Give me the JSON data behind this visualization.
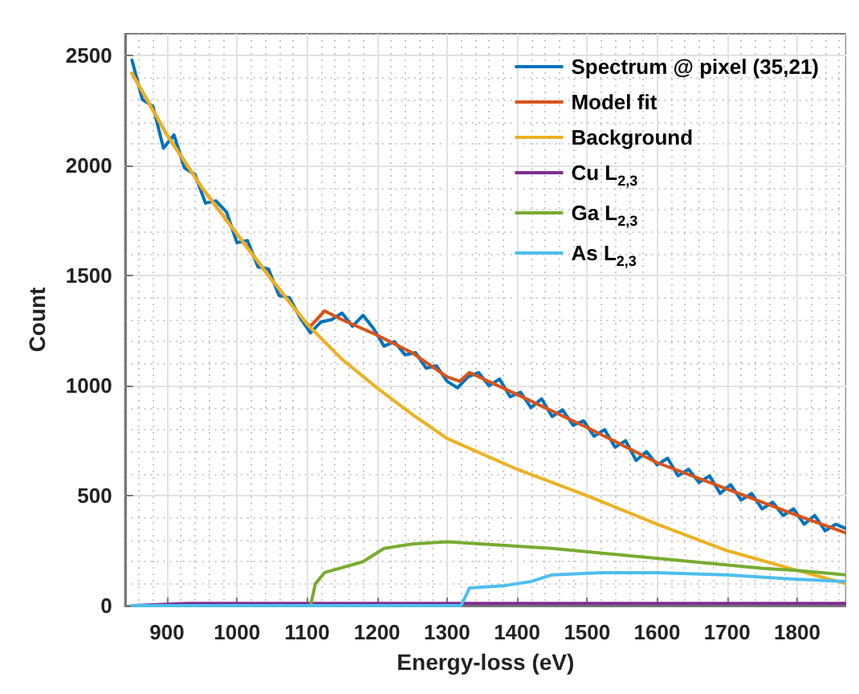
{
  "chart_data": {
    "type": "line",
    "xlabel": "Energy-loss (eV)",
    "ylabel": "Count",
    "xlim": [
      840,
      1870
    ],
    "xticks": [
      900,
      1000,
      1100,
      1200,
      1300,
      1400,
      1500,
      1600,
      1700,
      1800
    ],
    "ylim": [
      0,
      2600
    ],
    "yticks": [
      0,
      500,
      1000,
      1500,
      2000,
      2500
    ],
    "grid": true,
    "legend": "top right",
    "marker": "none",
    "line_style": "solid",
    "series": [
      {
        "name": "Spectrum @ pixel (35,21)",
        "color": "#0072bd",
        "x": [
          850,
          865,
          880,
          895,
          910,
          925,
          940,
          955,
          970,
          985,
          1000,
          1015,
          1030,
          1045,
          1060,
          1075,
          1090,
          1105,
          1120,
          1135,
          1150,
          1165,
          1180,
          1195,
          1210,
          1225,
          1240,
          1255,
          1270,
          1285,
          1300,
          1315,
          1330,
          1345,
          1360,
          1375,
          1390,
          1405,
          1420,
          1435,
          1450,
          1465,
          1480,
          1495,
          1510,
          1525,
          1540,
          1555,
          1570,
          1585,
          1600,
          1615,
          1630,
          1645,
          1660,
          1675,
          1690,
          1705,
          1720,
          1735,
          1750,
          1765,
          1780,
          1795,
          1810,
          1825,
          1840,
          1855,
          1870
        ],
        "values": [
          2480,
          2300,
          2270,
          2080,
          2140,
          1990,
          1960,
          1830,
          1840,
          1790,
          1650,
          1660,
          1540,
          1530,
          1410,
          1400,
          1310,
          1240,
          1290,
          1300,
          1330,
          1270,
          1320,
          1260,
          1180,
          1200,
          1140,
          1150,
          1080,
          1090,
          1020,
          990,
          1040,
          1060,
          1000,
          1030,
          950,
          970,
          900,
          940,
          860,
          890,
          820,
          840,
          770,
          800,
          720,
          750,
          660,
          700,
          640,
          670,
          590,
          620,
          560,
          590,
          510,
          550,
          480,
          510,
          440,
          470,
          410,
          440,
          370,
          410,
          340,
          370,
          350
        ]
      },
      {
        "name": "Model fit",
        "color": "#d95319",
        "x": [
          850,
          900,
          950,
          1000,
          1050,
          1100,
          1105,
          1125,
          1150,
          1200,
          1250,
          1300,
          1318,
          1332,
          1400,
          1500,
          1600,
          1700,
          1800,
          1870
        ],
        "values": [
          2420,
          2140,
          1900,
          1690,
          1480,
          1280,
          1270,
          1340,
          1300,
          1230,
          1150,
          1040,
          1020,
          1060,
          960,
          810,
          650,
          530,
          410,
          330
        ]
      },
      {
        "name": "Background",
        "color": "#edb120",
        "x": [
          850,
          900,
          950,
          1000,
          1050,
          1100,
          1150,
          1200,
          1250,
          1300,
          1400,
          1500,
          1600,
          1700,
          1800,
          1870
        ],
        "values": [
          2420,
          2140,
          1900,
          1690,
          1480,
          1280,
          1120,
          990,
          870,
          760,
          620,
          500,
          370,
          250,
          160,
          100
        ]
      },
      {
        "name": "Cu L$_{2,3}$",
        "color": "#7e2f8e",
        "x": [
          850,
          930,
          1000,
          1200,
          1400,
          1600,
          1870
        ],
        "values": [
          0,
          10,
          10,
          10,
          10,
          10,
          10
        ]
      },
      {
        "name": "Ga L$_{2,3}$",
        "color": "#77ac30",
        "x": [
          850,
          1105,
          1112,
          1125,
          1180,
          1210,
          1250,
          1300,
          1350,
          1450,
          1550,
          1650,
          1750,
          1800,
          1870
        ],
        "values": [
          0,
          0,
          100,
          150,
          200,
          260,
          280,
          290,
          280,
          260,
          230,
          200,
          170,
          160,
          140
        ]
      },
      {
        "name": "As L$_{2,3}$",
        "color": "#4dbeee",
        "x": [
          850,
          1320,
          1332,
          1380,
          1420,
          1450,
          1520,
          1600,
          1700,
          1800,
          1870
        ],
        "values": [
          0,
          0,
          80,
          90,
          110,
          140,
          150,
          150,
          140,
          120,
          110
        ]
      }
    ]
  }
}
